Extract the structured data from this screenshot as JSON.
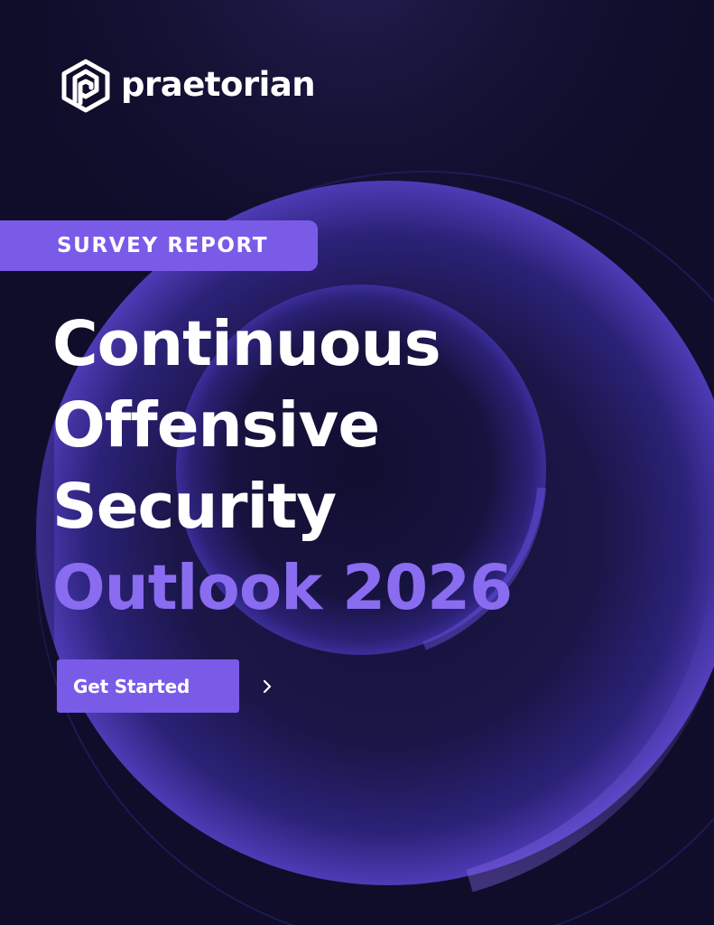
{
  "brand": {
    "name": "praetorian",
    "icon": "praetorian-hexagon-logo"
  },
  "tag": {
    "label": "SURVEY REPORT"
  },
  "headline": {
    "line1": "Continuous",
    "line2": "Offensive",
    "line3": "Security",
    "line4": "Outlook 2026"
  },
  "cta": {
    "label": "Get Started",
    "icon": "chevron-right-icon"
  },
  "colors": {
    "background": "#0f0d2a",
    "accent": "#7a5be8",
    "accent_text": "#8a6cf0",
    "text": "#ffffff"
  }
}
